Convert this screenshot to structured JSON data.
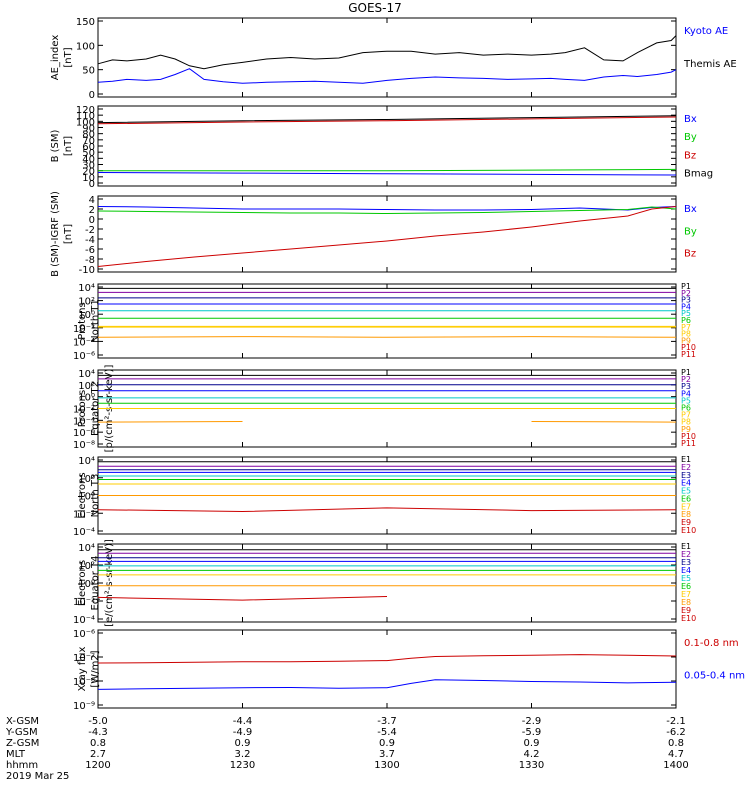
{
  "title": "GOES-17",
  "footer": {
    "row_labels": [
      "X-GSM",
      "Y-GSM",
      "Z-GSM",
      "MLT",
      "hhmm"
    ],
    "columns": [
      [
        "-5.0",
        "-4.3",
        "0.8",
        "2.7",
        "1200"
      ],
      [
        "-4.4",
        "-4.9",
        "0.9",
        "3.2",
        "1230"
      ],
      [
        "-3.7",
        "-5.4",
        "0.9",
        "3.7",
        "1300"
      ],
      [
        "-2.9",
        "-5.9",
        "0.9",
        "4.2",
        "1330"
      ],
      [
        "-2.1",
        "-6.2",
        "0.8",
        "4.7",
        "1400"
      ]
    ],
    "date": "2019 Mar 25"
  },
  "colors": {
    "black": "#000000",
    "blue": "#0000ff",
    "green": "#00c800",
    "red": "#cc0000",
    "yellow": "#ffcc00",
    "orange": "#ff9900",
    "cyan": "#00c8c8",
    "navy": "#00008b",
    "purple": "#8000a0",
    "grey": "#888888"
  },
  "chart_data": [
    {
      "type": "line",
      "ylabel": [
        "AE_index",
        "[nT]"
      ],
      "ylim": [
        0,
        150
      ],
      "yticks": [
        "0",
        "50",
        "100",
        "150"
      ],
      "ytick_values": [
        0,
        50,
        100,
        150
      ],
      "x": [
        1200,
        1203,
        1206,
        1210,
        1213,
        1216,
        1219,
        1222,
        1226,
        1230,
        1235,
        1240,
        1245,
        1250,
        1255,
        1300,
        1305,
        1310,
        1315,
        1320,
        1325,
        1330,
        1334,
        1337,
        1341,
        1345,
        1349,
        1352,
        1356,
        1359,
        1400
      ],
      "series": [
        {
          "name": "Kyoto AE",
          "color": "blue",
          "values": [
            24,
            26,
            30,
            28,
            30,
            40,
            52,
            30,
            25,
            22,
            24,
            25,
            26,
            24,
            22,
            28,
            32,
            35,
            33,
            32,
            30,
            31,
            32,
            30,
            28,
            35,
            38,
            36,
            40,
            45,
            50
          ]
        },
        {
          "name": "Themis AE",
          "color": "black",
          "values": [
            62,
            70,
            68,
            72,
            80,
            72,
            58,
            52,
            60,
            65,
            72,
            75,
            72,
            74,
            85,
            88,
            88,
            82,
            85,
            80,
            82,
            80,
            82,
            85,
            95,
            70,
            68,
            85,
            105,
            110,
            120
          ]
        }
      ]
    },
    {
      "type": "line",
      "ylabel": [
        "B (SM)",
        "[nT]"
      ],
      "ylim": [
        0,
        120
      ],
      "yticks": [
        "0",
        "10",
        "20",
        "30",
        "40",
        "50",
        "60",
        "70",
        "80",
        "90",
        "100",
        "110",
        "120"
      ],
      "ytick_values": [
        0,
        10,
        20,
        30,
        40,
        50,
        60,
        70,
        80,
        90,
        100,
        110,
        120
      ],
      "x": [
        1200,
        1230,
        1300,
        1330,
        1400
      ],
      "series": [
        {
          "name": "Bx",
          "color": "blue",
          "values": [
            17,
            16,
            15,
            14,
            13
          ]
        },
        {
          "name": "By",
          "color": "green",
          "values": [
            20,
            20,
            20,
            21,
            22
          ]
        },
        {
          "name": "Bz",
          "color": "red",
          "values": [
            96,
            99,
            101,
            104,
            107
          ]
        },
        {
          "name": "Bmag",
          "color": "black",
          "values": [
            98,
            101,
            103,
            106,
            109
          ]
        }
      ]
    },
    {
      "type": "line",
      "ylabel": [
        "B (SM)-IGRF (SM)",
        "[nT]"
      ],
      "ylim": [
        -10,
        4
      ],
      "yticks": [
        "-10",
        "-8",
        "-6",
        "-4",
        "-2",
        "0",
        "2",
        "4"
      ],
      "ytick_values": [
        -10,
        -8,
        -6,
        -4,
        -2,
        0,
        2,
        4
      ],
      "x": [
        1200,
        1210,
        1220,
        1230,
        1240,
        1250,
        1300,
        1310,
        1320,
        1330,
        1340,
        1350,
        1355,
        1400
      ],
      "series": [
        {
          "name": "Bx",
          "color": "blue",
          "values": [
            2.5,
            2.4,
            2.2,
            2.0,
            2.0,
            2.0,
            1.9,
            1.8,
            1.8,
            1.9,
            2.2,
            1.8,
            2.3,
            2.5
          ]
        },
        {
          "name": "By",
          "color": "green",
          "values": [
            1.6,
            1.5,
            1.4,
            1.3,
            1.2,
            1.2,
            1.1,
            1.2,
            1.3,
            1.5,
            1.7,
            1.9,
            2.4,
            2.0
          ]
        },
        {
          "name": "Bz",
          "color": "red",
          "values": [
            -9.5,
            -8.5,
            -7.6,
            -6.8,
            -6.0,
            -5.2,
            -4.4,
            -3.4,
            -2.6,
            -1.6,
            -0.4,
            0.6,
            2.0,
            2.5
          ]
        }
      ]
    },
    {
      "type": "line",
      "log": true,
      "ylabel": [
        "Protons",
        "North T1"
      ],
      "ylim_exp": [
        -6,
        4
      ],
      "yticks": [
        "10⁴",
        "10²",
        "10⁰",
        "10⁻²",
        "10⁻⁴",
        "10⁻⁶"
      ],
      "ytick_exps": [
        4,
        2,
        0,
        -2,
        -4,
        -6
      ],
      "x": [
        1200,
        1230,
        1300,
        1330,
        1400
      ],
      "series": [
        {
          "name": "P1",
          "color": "black",
          "log10": [
            3.8,
            3.8,
            3.8,
            3.8,
            3.8
          ]
        },
        {
          "name": "P2",
          "color": "purple",
          "log10": [
            3.2,
            3.2,
            3.2,
            3.2,
            3.2
          ]
        },
        {
          "name": "P3",
          "color": "navy",
          "log10": [
            2.4,
            2.4,
            2.4,
            2.4,
            2.4
          ]
        },
        {
          "name": "P4",
          "color": "blue",
          "log10": [
            1.5,
            1.5,
            1.5,
            1.5,
            1.5
          ]
        },
        {
          "name": "P5",
          "color": "cyan",
          "log10": [
            0.5,
            0.5,
            0.5,
            0.5,
            0.5
          ]
        },
        {
          "name": "P6",
          "color": "green",
          "log10": [
            -0.6,
            -0.6,
            -0.6,
            -0.6,
            -0.6
          ]
        },
        {
          "name": "P7",
          "color": "yellow",
          "log10": [
            -1.8,
            -1.8,
            -1.8,
            -1.8,
            -1.8
          ]
        },
        {
          "name": "P8",
          "color": "yellow",
          "log10": [
            -1.9,
            -1.9,
            -1.9,
            -1.9,
            -1.9
          ]
        },
        {
          "name": "P9",
          "color": "orange",
          "log10": [
            -3.4,
            -3.3,
            -3.4,
            -3.3,
            -3.4
          ]
        },
        {
          "name": "P10",
          "color": "red",
          "log10": []
        },
        {
          "name": "P11",
          "color": "red",
          "log10": []
        }
      ]
    },
    {
      "type": "line",
      "log": true,
      "ylabel": [
        "Protons",
        "Equator T2",
        "[p/(cm²-s-sr-keV)]"
      ],
      "ylim_exp": [
        -8,
        4
      ],
      "yticks": [
        "10⁴",
        "10²",
        "10⁰",
        "10⁻²",
        "10⁻⁴",
        "10⁻⁶",
        "10⁻⁸"
      ],
      "ytick_exps": [
        4,
        2,
        0,
        -2,
        -4,
        -6,
        -8
      ],
      "x": [
        1200,
        1230,
        1300,
        1330,
        1400
      ],
      "series": [
        {
          "name": "P1",
          "color": "black",
          "log10": [
            3.6,
            3.6,
            3.6,
            3.6,
            3.6
          ]
        },
        {
          "name": "P2",
          "color": "purple",
          "log10": [
            3.0,
            3.0,
            3.0,
            3.0,
            3.0
          ]
        },
        {
          "name": "P3",
          "color": "navy",
          "log10": [
            2.0,
            2.0,
            2.0,
            2.0,
            2.0
          ]
        },
        {
          "name": "P4",
          "color": "blue",
          "log10": [
            1.0,
            1.0,
            1.0,
            1.0,
            1.0
          ]
        },
        {
          "name": "P5",
          "color": "cyan",
          "log10": [
            -0.2,
            -0.2,
            -0.2,
            -0.2,
            -0.2
          ]
        },
        {
          "name": "P6",
          "color": "green",
          "log10": [
            -1.1,
            -1.1,
            -1.1,
            -1.1,
            -1.1
          ]
        },
        {
          "name": "P7",
          "color": "yellow",
          "log10": [
            -2.0,
            -2.0,
            -2.0,
            -2.0,
            -2.0
          ]
        },
        {
          "name": "P8",
          "color": "yellow",
          "log10": [
            -2.0,
            -2.0,
            -2.0,
            -2.0,
            -2.0
          ]
        },
        {
          "name": "P9",
          "color": "orange",
          "log10": [
            -4.3,
            -4.2,
            null,
            -4.2,
            -4.3
          ]
        },
        {
          "name": "P10",
          "color": "red",
          "log10": []
        },
        {
          "name": "P11",
          "color": "red",
          "log10": []
        }
      ]
    },
    {
      "type": "line",
      "log": true,
      "ylabel": [
        "Electrons",
        "North T3"
      ],
      "ylim_exp": [
        -4,
        4
      ],
      "yticks": [
        "10⁴",
        "10²",
        "10⁰",
        "10⁻²",
        "10⁻⁴"
      ],
      "ytick_exps": [
        4,
        2,
        0,
        -2,
        -4
      ],
      "x": [
        1200,
        1230,
        1300,
        1330,
        1400
      ],
      "series": [
        {
          "name": "E1",
          "color": "black",
          "log10": [
            3.8,
            3.8,
            3.8,
            3.8,
            3.8
          ]
        },
        {
          "name": "E2",
          "color": "purple",
          "log10": [
            3.3,
            3.3,
            3.3,
            3.3,
            3.3
          ]
        },
        {
          "name": "E3",
          "color": "navy",
          "log10": [
            2.9,
            2.9,
            2.9,
            2.9,
            2.9
          ]
        },
        {
          "name": "E4",
          "color": "blue",
          "log10": [
            2.6,
            2.6,
            2.6,
            2.6,
            2.6
          ]
        },
        {
          "name": "E5",
          "color": "cyan",
          "log10": [
            2.2,
            2.2,
            2.2,
            2.2,
            2.2
          ]
        },
        {
          "name": "E6",
          "color": "green",
          "log10": [
            1.8,
            1.8,
            1.8,
            1.8,
            1.8
          ]
        },
        {
          "name": "E7",
          "color": "yellow",
          "log10": [
            1.3,
            1.3,
            1.3,
            1.3,
            1.3
          ]
        },
        {
          "name": "E8",
          "color": "orange",
          "log10": [
            0.0,
            0.0,
            0.0,
            0.0,
            0.0
          ]
        },
        {
          "name": "E9",
          "color": "red",
          "log10": [
            -1.6,
            -1.8,
            -1.4,
            -1.7,
            -1.6
          ]
        },
        {
          "name": "E10",
          "color": "red",
          "log10": []
        }
      ]
    },
    {
      "type": "line",
      "log": true,
      "ylabel": [
        "Electrons",
        "Equator T4",
        "[e/(cm²-s-sr-keV)]"
      ],
      "ylim_exp": [
        -4,
        4
      ],
      "yticks": [
        "10⁴",
        "10²",
        "10⁰",
        "10⁻²",
        "10⁻⁴"
      ],
      "ytick_exps": [
        4,
        2,
        0,
        -2,
        -4
      ],
      "x": [
        1200,
        1230,
        1300,
        1330,
        1400
      ],
      "series": [
        {
          "name": "E1",
          "color": "black",
          "log10": [
            3.7,
            3.7,
            3.7,
            3.7,
            3.7
          ]
        },
        {
          "name": "E2",
          "color": "purple",
          "log10": [
            3.3,
            3.3,
            3.3,
            3.3,
            3.3
          ]
        },
        {
          "name": "E3",
          "color": "navy",
          "log10": [
            2.8,
            2.8,
            2.8,
            2.8,
            2.8
          ]
        },
        {
          "name": "E4",
          "color": "blue",
          "log10": [
            2.4,
            2.4,
            2.4,
            2.4,
            2.4
          ]
        },
        {
          "name": "E5",
          "color": "cyan",
          "log10": [
            1.9,
            1.9,
            1.9,
            1.9,
            1.9
          ]
        },
        {
          "name": "E6",
          "color": "green",
          "log10": [
            1.4,
            1.4,
            1.4,
            1.4,
            1.4
          ]
        },
        {
          "name": "E7",
          "color": "yellow",
          "log10": [
            0.9,
            0.9,
            0.9,
            0.9,
            0.9
          ]
        },
        {
          "name": "E8",
          "color": "orange",
          "log10": [
            -0.3,
            -0.3,
            -0.3,
            -0.3,
            -0.3
          ]
        },
        {
          "name": "E9",
          "color": "red",
          "log10": [
            -1.6,
            -1.9,
            -1.5,
            null,
            null
          ]
        },
        {
          "name": "E10",
          "color": "red",
          "log10": []
        }
      ]
    },
    {
      "type": "line",
      "log": true,
      "ylabel": [
        "Xray flux",
        "[W/m2]"
      ],
      "ylim_exp": [
        -9,
        -6
      ],
      "yticks": [
        "10⁻⁶",
        "10⁻⁷",
        "10⁻⁸",
        "10⁻⁹"
      ],
      "ytick_exps": [
        -6,
        -7,
        -8,
        -9
      ],
      "x": [
        1200,
        1210,
        1220,
        1230,
        1240,
        1250,
        1300,
        1305,
        1310,
        1320,
        1330,
        1340,
        1350,
        1400
      ],
      "series": [
        {
          "name": "0.1-0.8 nm",
          "color": "red",
          "log10": [
            -7.25,
            -7.24,
            -7.22,
            -7.2,
            -7.2,
            -7.18,
            -7.15,
            -7.05,
            -6.98,
            -6.95,
            -6.93,
            -6.9,
            -6.93,
            -6.96
          ]
        },
        {
          "name": "0.05-0.4 nm",
          "color": "blue",
          "log10": [
            -8.35,
            -8.32,
            -8.3,
            -8.28,
            -8.27,
            -8.3,
            -8.28,
            -8.1,
            -7.95,
            -7.98,
            -8.02,
            -8.04,
            -8.08,
            -8.05
          ]
        }
      ]
    }
  ]
}
